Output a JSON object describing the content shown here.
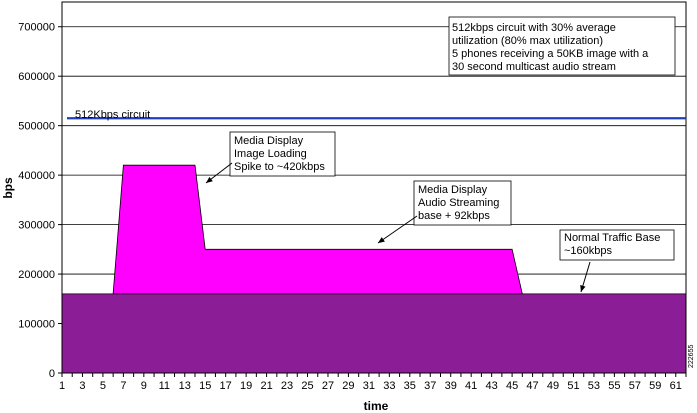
{
  "chart_data": {
    "type": "area",
    "xlabel": "time",
    "ylabel": "bps",
    "xlim": [
      1,
      62
    ],
    "ylim": [
      0,
      750000
    ],
    "x_ticks": [
      "1",
      "3",
      "5",
      "7",
      "9",
      "11",
      "13",
      "15",
      "17",
      "19",
      "21",
      "23",
      "25",
      "27",
      "29",
      "31",
      "33",
      "35",
      "37",
      "39",
      "41",
      "43",
      "45",
      "47",
      "49",
      "51",
      "53",
      "55",
      "57",
      "59",
      "61"
    ],
    "y_ticks": [
      "0",
      "100000",
      "200000",
      "300000",
      "400000",
      "500000",
      "600000",
      "700000"
    ],
    "grid": true,
    "series": [
      {
        "type": "area",
        "color": "#ff00ff",
        "x": [
          1,
          6,
          7,
          14,
          15,
          45,
          46,
          62
        ],
        "values": [
          0,
          160000,
          420000,
          420000,
          250000,
          250000,
          160000,
          160000
        ]
      },
      {
        "type": "area",
        "color": "#8b1e96",
        "x": [
          1,
          62
        ],
        "values": [
          160000,
          160000
        ]
      },
      {
        "type": "line",
        "name": "512Kbps circuit",
        "color": "#1f3fbf",
        "x": [
          1,
          62
        ],
        "values": [
          515000,
          515000
        ]
      }
    ],
    "annotations": [
      {
        "id": "circuit",
        "lines": [
          "512Kbps circuit"
        ]
      },
      {
        "id": "info",
        "lines": [
          "512kbps circuit with 30% average",
          "utilization (80% max utilization)",
          "5 phones receiving a 50KB image with a",
          "30 second multicast audio stream"
        ]
      },
      {
        "id": "spike",
        "lines": [
          "Media Display",
          "Image Loading",
          "Spike to ~420kbps"
        ]
      },
      {
        "id": "audio",
        "lines": [
          "Media Display",
          "Audio Streaming",
          "base + 92kbps"
        ]
      },
      {
        "id": "base",
        "lines": [
          "Normal Traffic Base",
          "~160kbps"
        ]
      }
    ],
    "figure_id": "222655"
  }
}
